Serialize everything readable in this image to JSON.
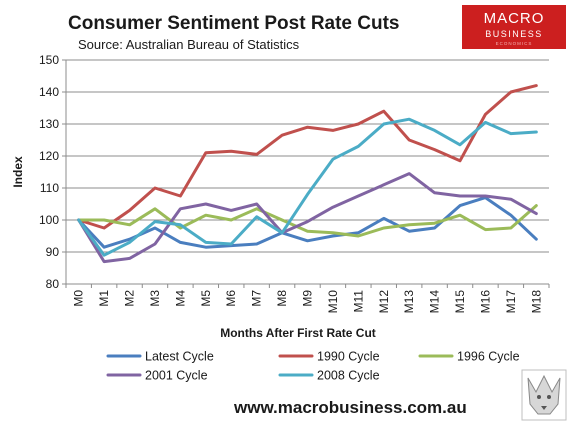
{
  "chart_data": {
    "type": "line",
    "title": "Consumer Sentiment Post Rate Cuts",
    "subtitle": "Source: Australian Bureau of Statistics",
    "xlabel": "Months After First Rate Cut",
    "ylabel": "Index",
    "ylim": [
      80,
      150
    ],
    "yticks": [
      80,
      90,
      100,
      110,
      120,
      130,
      140,
      150
    ],
    "categories": [
      "M0",
      "M1",
      "M2",
      "M3",
      "M4",
      "M5",
      "M6",
      "M7",
      "M8",
      "M9",
      "M10",
      "M11",
      "M12",
      "M13",
      "M14",
      "M15",
      "M16",
      "M17",
      "M18"
    ],
    "grid": "horizontal",
    "legend_position": "bottom",
    "series": [
      {
        "name": "Latest Cycle",
        "color": "#4a7ebf",
        "values": [
          100,
          91.5,
          94,
          97.5,
          93,
          91.5,
          92,
          92.5,
          96,
          93.5,
          95,
          96,
          100.5,
          96.5,
          97.5,
          104.5,
          107,
          101.5,
          94
        ]
      },
      {
        "name": "1990 Cycle",
        "color": "#c0504d",
        "values": [
          100,
          97.5,
          103,
          110,
          107.5,
          121,
          121.5,
          120.5,
          126.5,
          129,
          128,
          130,
          134,
          125,
          122,
          118.5,
          133,
          140,
          142
        ]
      },
      {
        "name": "1996 Cycle",
        "color": "#9bbb59",
        "values": [
          100,
          100,
          98.5,
          103.5,
          97.5,
          101.5,
          100,
          103.5,
          100,
          96.5,
          96,
          95,
          97.5,
          98.5,
          99,
          101.5,
          97,
          97.5,
          104.5
        ]
      },
      {
        "name": "2001 Cycle",
        "color": "#8064a2",
        "values": [
          100,
          87,
          88,
          92.5,
          103.5,
          105,
          103,
          105,
          96,
          99.5,
          104,
          107.5,
          111,
          114.5,
          108.5,
          107.5,
          107.5,
          106.5,
          102
        ]
      },
      {
        "name": "2008 Cycle",
        "color": "#4bacc6",
        "values": [
          100,
          89,
          93,
          99.5,
          98.5,
          93,
          92.5,
          101,
          96,
          108,
          119,
          123,
          130,
          131.5,
          128,
          123.5,
          130.5,
          127,
          127.5
        ]
      }
    ]
  },
  "branding": {
    "website": "www.macrobusiness.com.au",
    "logo_line1": "MACRO",
    "logo_line2": "BUSINESS",
    "logo_tagline": "ECONOMICS",
    "logo_color": "#cc1f1f"
  }
}
